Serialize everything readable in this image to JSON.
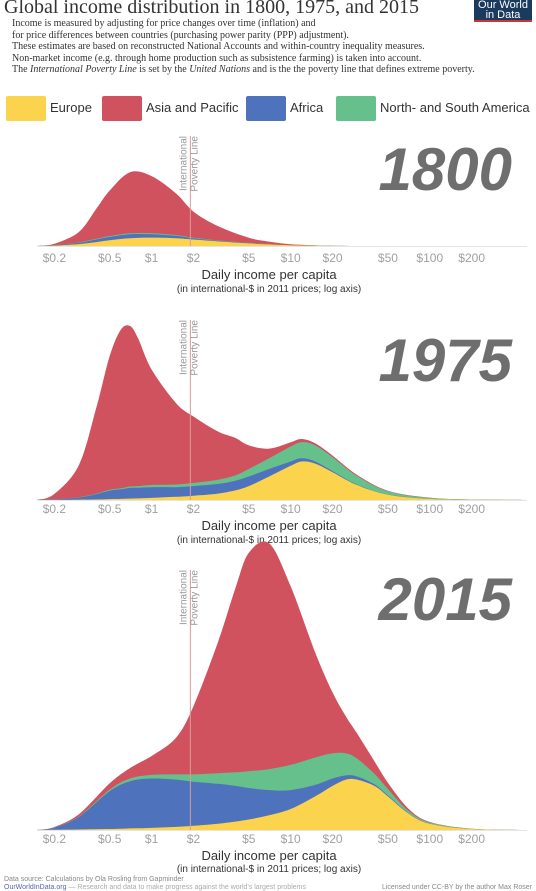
{
  "header": {
    "title": "Global income distribution in 1800, 1975, and 2015",
    "logo_line1": "Our World",
    "logo_line2": "in Data"
  },
  "intro": {
    "line1": "Income is measured by adjusting for price changes over time (inflation) and",
    "line2": "for price differences between countries (purchasing power parity (PPP) adjustment).",
    "line3": "These estimates are based on reconstructed National Accounts and within-country inequality measures.",
    "line4": "Non-market income (e.g. through home production such as subsistence farming) is taken into account.",
    "line5_a": "The ",
    "line5_b": "International Poverty Line",
    "line5_c": " is set by the ",
    "line5_d": "United Nations",
    "line5_e": " and is the the poverty line that defines extreme poverty."
  },
  "legend": [
    {
      "label": "Europe",
      "color": "#fcd34d"
    },
    {
      "label": "Asia and Pacific",
      "color": "#d1525f"
    },
    {
      "label": "Africa",
      "color": "#4f72bc"
    },
    {
      "label": "North- and South America",
      "color": "#66c08c"
    }
  ],
  "poverty_line_label": [
    "International",
    "Poverty Line"
  ],
  "footer": {
    "source": "Data source: Calculations by Ola Rosling from Gapminder",
    "site": "OurWorldInData.org",
    "tagline": "— Research and data to make progress against the world's largest problems",
    "license": "Licensed under CC-BY by the author Max Roser"
  },
  "chart_data": [
    {
      "type": "area",
      "stacked": true,
      "year_label": "1800",
      "xlabel": "Daily income per capita",
      "xsublabel": "(in international-$ in 2011 prices; log axis)",
      "x_scale": "log",
      "xlim": [
        0.15,
        500
      ],
      "x_ticks": [
        0.2,
        0.5,
        1,
        2,
        5,
        10,
        20,
        50,
        100,
        200
      ],
      "x_tick_labels": [
        "$0.2",
        "$0.5",
        "$1",
        "$2",
        "$5",
        "$10",
        "$20",
        "$50",
        "$100",
        "$200"
      ],
      "poverty_line_x": 1.9,
      "x": [
        0.15,
        0.2,
        0.3,
        0.4,
        0.5,
        0.7,
        1,
        1.5,
        2,
        3,
        5,
        7,
        10,
        15,
        20,
        30,
        50,
        100,
        200,
        500
      ],
      "series": [
        {
          "name": "Europe",
          "values": [
            0,
            0.3,
            1.5,
            3,
            4.5,
            6,
            6.5,
            6,
            5,
            3.5,
            2,
            1.2,
            0.6,
            0.3,
            0.1,
            0,
            0,
            0,
            0,
            0
          ]
        },
        {
          "name": "Africa",
          "values": [
            0,
            0.3,
            1,
            2,
            2.5,
            3,
            2.5,
            1.8,
            1,
            0.5,
            0.2,
            0.1,
            0,
            0,
            0,
            0,
            0,
            0,
            0,
            0
          ]
        },
        {
          "name": "North- and South America",
          "values": [
            0,
            0.1,
            0.3,
            0.5,
            0.7,
            0.8,
            0.8,
            0.6,
            0.5,
            0.3,
            0.2,
            0.1,
            0,
            0,
            0,
            0,
            0,
            0,
            0,
            0
          ]
        },
        {
          "name": "Asia and Pacific",
          "values": [
            0,
            1,
            8,
            23,
            35,
            47,
            44,
            32,
            20,
            11,
            4,
            2,
            0.8,
            0.3,
            0.1,
            0,
            0,
            0,
            0,
            0
          ]
        }
      ]
    },
    {
      "type": "area",
      "stacked": true,
      "year_label": "1975",
      "xlabel": "Daily income per capita",
      "xsublabel": "(in international-$ in 2011 prices; log axis)",
      "x_scale": "log",
      "xlim": [
        0.15,
        500
      ],
      "x_ticks": [
        0.2,
        0.5,
        1,
        2,
        5,
        10,
        20,
        50,
        100,
        200
      ],
      "x_tick_labels": [
        "$0.2",
        "$0.5",
        "$1",
        "$2",
        "$5",
        "$10",
        "$20",
        "$50",
        "$100",
        "$200"
      ],
      "poverty_line_x": 1.9,
      "x": [
        0.15,
        0.2,
        0.3,
        0.4,
        0.5,
        0.6,
        0.7,
        0.8,
        1,
        1.5,
        2,
        3,
        4,
        5,
        7,
        10,
        12,
        15,
        20,
        30,
        50,
        100,
        200,
        500
      ],
      "series": [
        {
          "name": "Europe",
          "values": [
            0,
            0.1,
            0.3,
            0.5,
            0.8,
            1,
            1.3,
            1.5,
            2,
            3,
            4,
            6,
            9,
            13,
            22,
            32,
            36,
            34,
            26,
            14,
            5,
            1,
            0.3,
            0
          ]
        },
        {
          "name": "Africa",
          "values": [
            0,
            0.5,
            2,
            5,
            8,
            9,
            10,
            10,
            10,
            9,
            9,
            9,
            9,
            9,
            7,
            4,
            3,
            2,
            1,
            0.5,
            0.2,
            0,
            0,
            0
          ]
        },
        {
          "name": "North- and South America",
          "values": [
            0,
            0.1,
            0.3,
            0.5,
            0.8,
            1,
            1.3,
            1.5,
            2,
            2.5,
            3,
            4,
            5,
            7,
            10,
            14,
            15,
            15,
            13,
            8,
            3,
            1,
            0.2,
            0
          ]
        },
        {
          "name": "Asia and Pacific",
          "values": [
            0,
            5,
            30,
            80,
            125,
            148,
            150,
            138,
            108,
            76,
            62,
            45,
            35,
            22,
            9,
            4,
            3,
            2,
            1.5,
            1,
            0.5,
            0.2,
            0,
            0
          ]
        }
      ]
    },
    {
      "type": "area",
      "stacked": true,
      "year_label": "2015",
      "xlabel": "Daily income per capita",
      "xsublabel": "(in international-$ in 2011 prices; log axis)",
      "x_scale": "log",
      "xlim": [
        0.15,
        500
      ],
      "x_ticks": [
        0.2,
        0.5,
        1,
        2,
        5,
        10,
        20,
        50,
        100,
        200
      ],
      "x_tick_labels": [
        "$0.2",
        "$0.5",
        "$1",
        "$2",
        "$5",
        "$10",
        "$20",
        "$50",
        "$100",
        "$200"
      ],
      "poverty_line_x": 1.9,
      "x": [
        0.15,
        0.2,
        0.3,
        0.5,
        0.7,
        1,
        1.5,
        2,
        3,
        4,
        5,
        7,
        10,
        15,
        20,
        25,
        30,
        40,
        50,
        70,
        100,
        200,
        500
      ],
      "series": [
        {
          "name": "Europe",
          "values": [
            0,
            0.2,
            0.5,
            1,
            1.5,
            2,
            3,
            4,
            6,
            8,
            10,
            14,
            20,
            32,
            42,
            48,
            48,
            42,
            32,
            16,
            6,
            1,
            0
          ]
        },
        {
          "name": "Africa",
          "values": [
            0,
            2,
            12,
            36,
            45,
            47,
            45,
            42,
            38,
            34,
            30,
            24,
            18,
            11,
            7,
            4,
            3,
            1.5,
            1,
            0.5,
            0.2,
            0,
            0
          ]
        },
        {
          "name": "North- and South America",
          "values": [
            0,
            0.2,
            0.5,
            1.5,
            2.5,
            3.5,
            5,
            7,
            10,
            13,
            16,
            20,
            24,
            26,
            24,
            21,
            17,
            10,
            6,
            2,
            1,
            0.2,
            0
          ]
        },
        {
          "name": "Asia and Pacific",
          "values": [
            0,
            0.5,
            2,
            6,
            10,
            18,
            35,
            65,
            125,
            175,
            208,
            215,
            170,
            100,
            58,
            35,
            24,
            12,
            6,
            2,
            0.5,
            0,
            0
          ]
        }
      ]
    }
  ]
}
